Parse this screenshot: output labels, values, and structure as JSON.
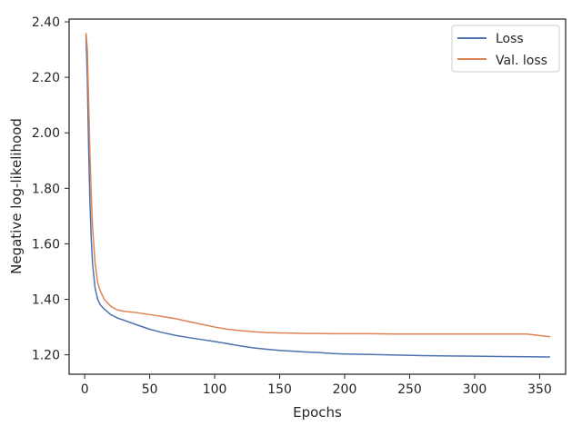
{
  "chart_data": {
    "type": "line",
    "title": "",
    "xlabel": "Epochs",
    "ylabel": "Negative log-likelihood",
    "xlim": [
      -12,
      370
    ],
    "ylim": [
      1.13,
      2.41
    ],
    "x_ticks": [
      0,
      50,
      100,
      150,
      200,
      250,
      300,
      350
    ],
    "x_tick_labels": [
      "0",
      "50",
      "100",
      "150",
      "200",
      "250",
      "300",
      "350"
    ],
    "y_ticks": [
      1.2,
      1.4,
      1.6,
      1.8,
      2.0,
      2.2,
      2.4
    ],
    "y_tick_labels": [
      "1.20",
      "1.40",
      "1.60",
      "1.80",
      "2.00",
      "2.20",
      "2.40"
    ],
    "grid": false,
    "legend_position": "top-right",
    "series": [
      {
        "name": "Loss",
        "color": "#4c72b0",
        "x": [
          1,
          2,
          3,
          4,
          5,
          6,
          8,
          10,
          12,
          15,
          20,
          25,
          30,
          40,
          50,
          60,
          70,
          80,
          90,
          100,
          110,
          120,
          130,
          140,
          150,
          160,
          170,
          180,
          190,
          200,
          220,
          240,
          260,
          280,
          300,
          320,
          340,
          358
        ],
        "y": [
          2.35,
          2.2,
          1.95,
          1.75,
          1.62,
          1.53,
          1.44,
          1.4,
          1.38,
          1.365,
          1.345,
          1.333,
          1.325,
          1.308,
          1.292,
          1.28,
          1.27,
          1.262,
          1.255,
          1.248,
          1.24,
          1.232,
          1.225,
          1.22,
          1.216,
          1.213,
          1.21,
          1.208,
          1.205,
          1.203,
          1.201,
          1.199,
          1.197,
          1.196,
          1.195,
          1.194,
          1.193,
          1.192
        ]
      },
      {
        "name": "Val. loss",
        "color": "#dd8452",
        "x": [
          1,
          2,
          3,
          4,
          5,
          6,
          8,
          10,
          12,
          15,
          20,
          25,
          30,
          40,
          50,
          60,
          70,
          80,
          90,
          100,
          110,
          120,
          130,
          140,
          150,
          160,
          170,
          180,
          190,
          200,
          220,
          240,
          260,
          280,
          300,
          320,
          340,
          358
        ],
        "y": [
          2.36,
          2.3,
          2.12,
          1.93,
          1.78,
          1.66,
          1.53,
          1.46,
          1.43,
          1.4,
          1.375,
          1.362,
          1.357,
          1.352,
          1.345,
          1.338,
          1.33,
          1.32,
          1.31,
          1.3,
          1.292,
          1.287,
          1.283,
          1.28,
          1.279,
          1.278,
          1.277,
          1.277,
          1.276,
          1.276,
          1.276,
          1.275,
          1.275,
          1.275,
          1.275,
          1.275,
          1.275,
          1.265
        ]
      }
    ]
  }
}
